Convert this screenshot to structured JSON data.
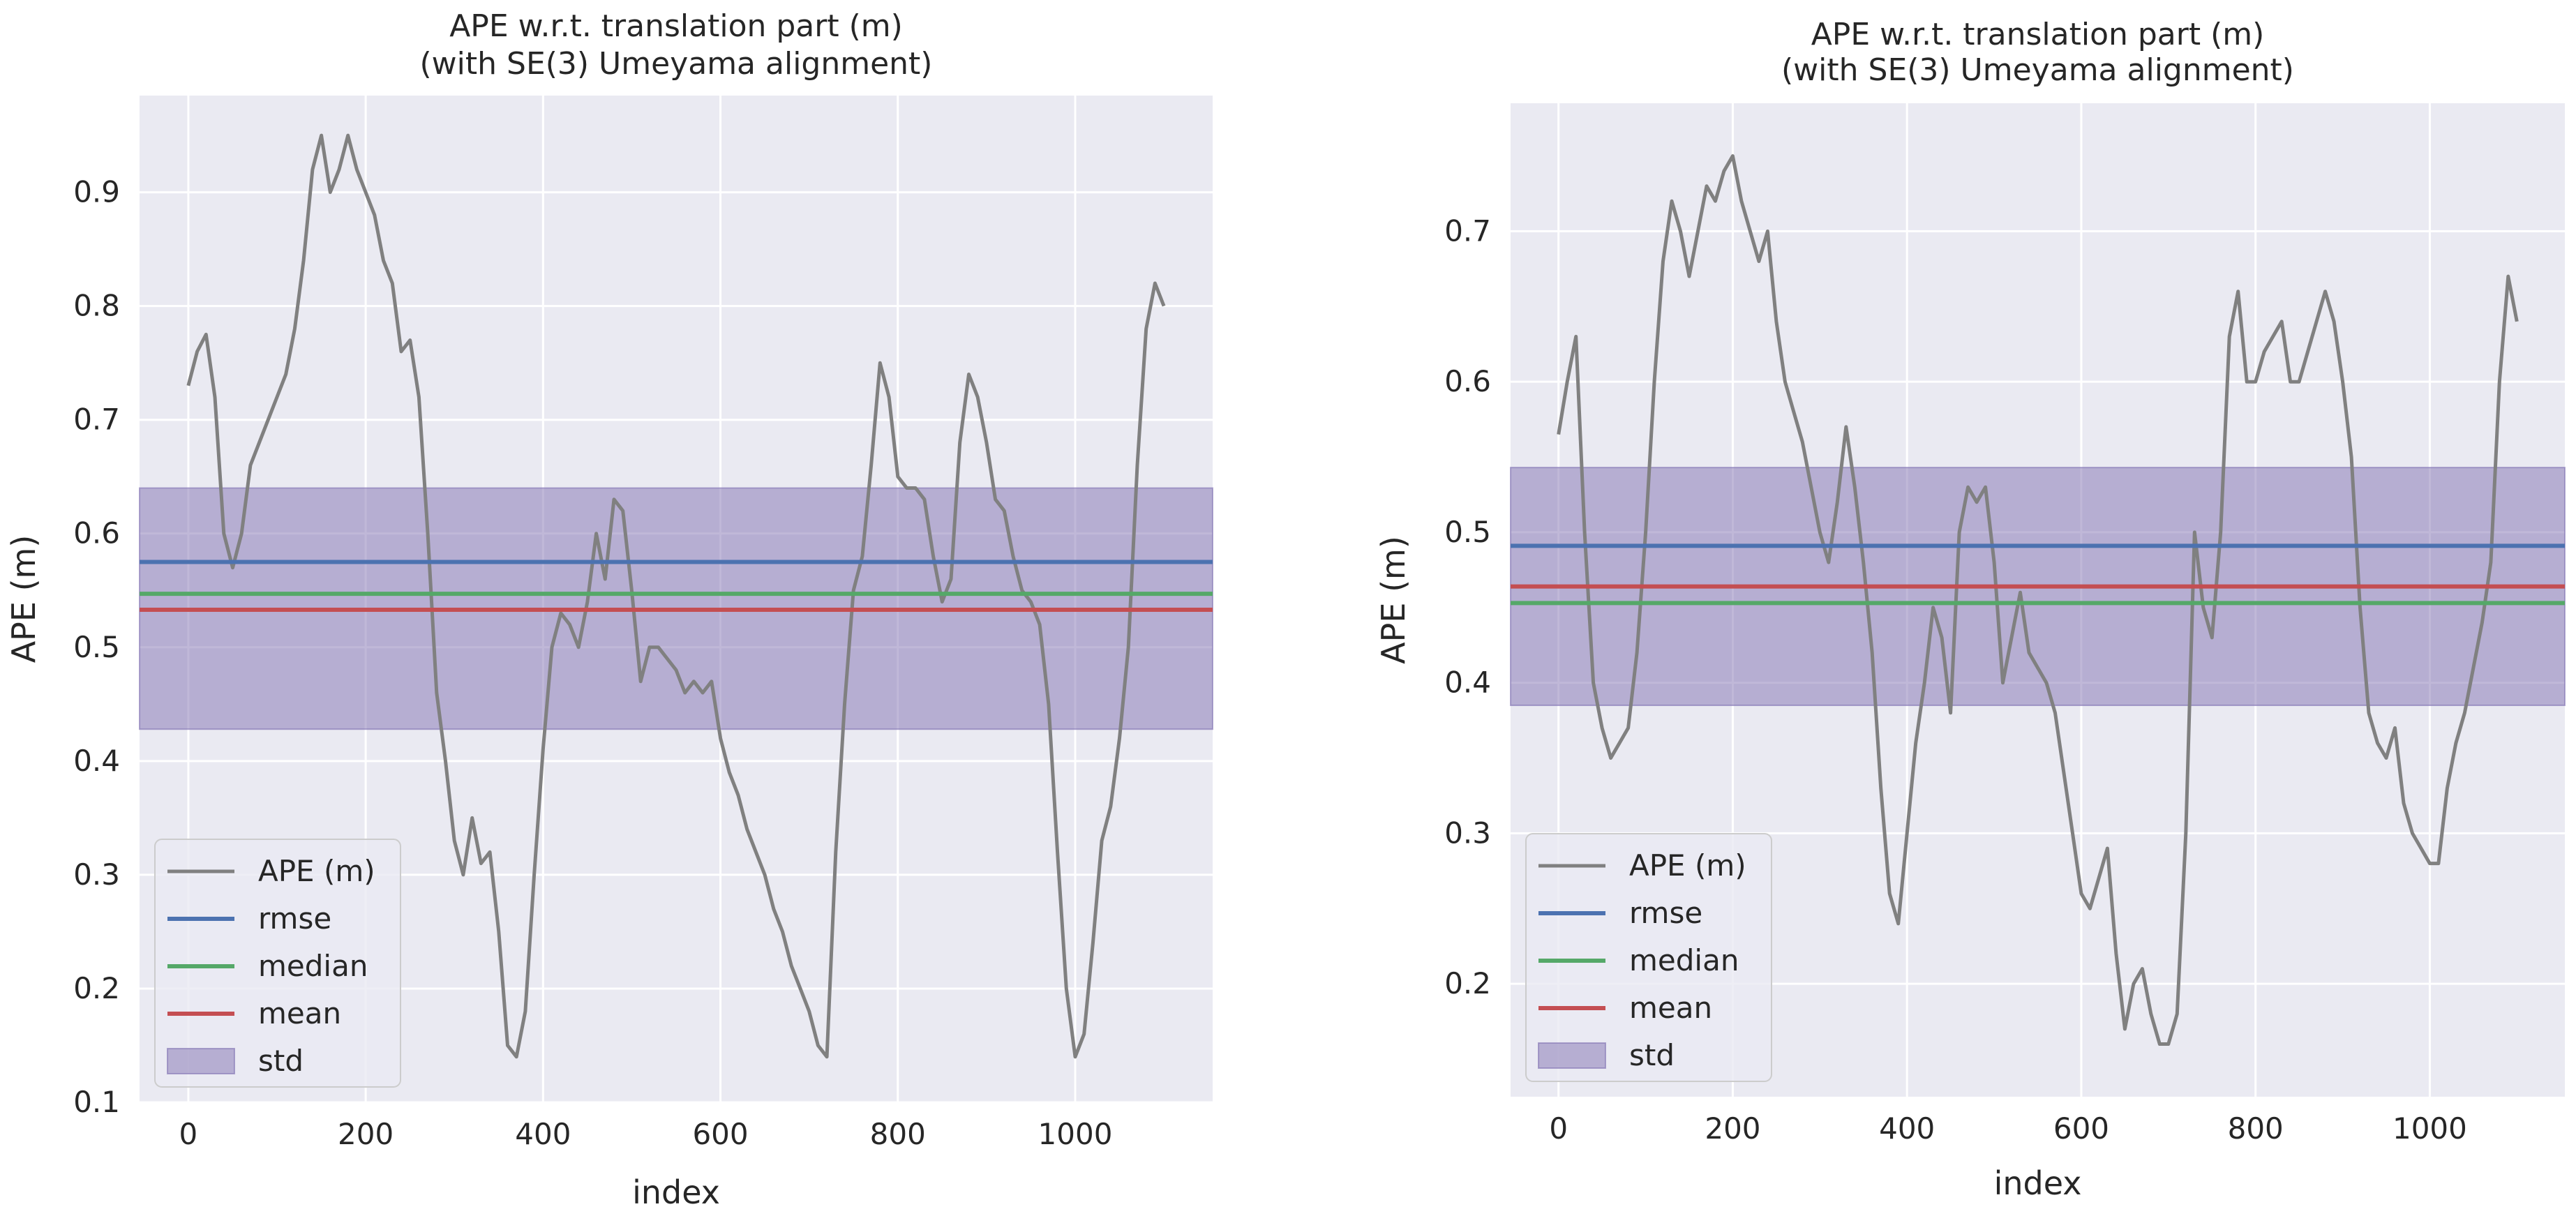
{
  "chart_data": [
    {
      "type": "line",
      "title": "APE w.r.t. translation part (m)",
      "subtitle": "(with SE(3) Umeyama alignment)",
      "xlabel": "index",
      "ylabel": "APE (m)",
      "xlim": [
        -55,
        1155
      ],
      "ylim": [
        0.1,
        0.985
      ],
      "xticks": [
        0,
        200,
        400,
        600,
        800,
        1000
      ],
      "yticks": [
        0.1,
        0.2,
        0.3,
        0.4,
        0.5,
        0.6,
        0.7,
        0.8,
        0.9
      ],
      "grid": true,
      "legend_position": "lower-left",
      "series": [
        {
          "name": "APE (m)",
          "kind": "line",
          "color": "#808080",
          "x": [
            0,
            10,
            20,
            30,
            40,
            50,
            60,
            70,
            80,
            90,
            100,
            110,
            120,
            130,
            140,
            150,
            160,
            170,
            180,
            190,
            200,
            210,
            220,
            230,
            240,
            250,
            260,
            270,
            280,
            290,
            300,
            310,
            320,
            330,
            340,
            350,
            360,
            370,
            380,
            390,
            400,
            410,
            420,
            430,
            440,
            450,
            460,
            470,
            480,
            490,
            500,
            510,
            520,
            530,
            540,
            550,
            560,
            570,
            580,
            590,
            600,
            610,
            620,
            630,
            640,
            650,
            660,
            670,
            680,
            690,
            700,
            710,
            720,
            730,
            740,
            750,
            760,
            770,
            780,
            790,
            800,
            810,
            820,
            830,
            840,
            850,
            860,
            870,
            880,
            890,
            900,
            910,
            920,
            930,
            940,
            950,
            960,
            970,
            980,
            990,
            1000,
            1010,
            1020,
            1030,
            1040,
            1050,
            1060,
            1070,
            1080,
            1090,
            1100
          ],
          "y": [
            0.73,
            0.76,
            0.775,
            0.72,
            0.6,
            0.57,
            0.6,
            0.66,
            0.68,
            0.7,
            0.72,
            0.74,
            0.78,
            0.84,
            0.92,
            0.95,
            0.9,
            0.92,
            0.95,
            0.92,
            0.9,
            0.88,
            0.84,
            0.82,
            0.76,
            0.77,
            0.72,
            0.6,
            0.46,
            0.4,
            0.33,
            0.3,
            0.35,
            0.31,
            0.32,
            0.25,
            0.15,
            0.14,
            0.18,
            0.3,
            0.41,
            0.5,
            0.53,
            0.52,
            0.5,
            0.54,
            0.6,
            0.56,
            0.63,
            0.62,
            0.55,
            0.47,
            0.5,
            0.5,
            0.49,
            0.48,
            0.46,
            0.47,
            0.46,
            0.47,
            0.42,
            0.39,
            0.37,
            0.34,
            0.32,
            0.3,
            0.27,
            0.25,
            0.22,
            0.2,
            0.18,
            0.15,
            0.14,
            0.32,
            0.45,
            0.55,
            0.58,
            0.66,
            0.75,
            0.72,
            0.65,
            0.64,
            0.64,
            0.63,
            0.58,
            0.54,
            0.56,
            0.68,
            0.74,
            0.72,
            0.68,
            0.63,
            0.62,
            0.58,
            0.55,
            0.54,
            0.52,
            0.45,
            0.32,
            0.2,
            0.14,
            0.16,
            0.24,
            0.33,
            0.36,
            0.42,
            0.5,
            0.66,
            0.78,
            0.82,
            0.8
          ]
        },
        {
          "name": "rmse",
          "kind": "hline",
          "color": "#4c72b0",
          "value": 0.575
        },
        {
          "name": "median",
          "kind": "hline",
          "color": "#55a868",
          "value": 0.547
        },
        {
          "name": "mean",
          "kind": "hline",
          "color": "#c44e52",
          "value": 0.533
        },
        {
          "name": "std",
          "kind": "band",
          "color": "#8172b2",
          "lower": 0.428,
          "upper": 0.64
        }
      ]
    },
    {
      "type": "line",
      "title": "APE w.r.t. translation part (m)",
      "subtitle": "(with SE(3) Umeyama alignment)",
      "xlabel": "index",
      "ylabel": "APE (m)",
      "xlim": [
        -55,
        1155
      ],
      "ylim": [
        0.125,
        0.785
      ],
      "xticks": [
        0,
        200,
        400,
        600,
        800,
        1000
      ],
      "yticks": [
        0.2,
        0.3,
        0.4,
        0.5,
        0.6,
        0.7
      ],
      "grid": true,
      "legend_position": "lower-left",
      "series": [
        {
          "name": "APE (m)",
          "kind": "line",
          "color": "#808080",
          "x": [
            0,
            10,
            20,
            30,
            40,
            50,
            60,
            70,
            80,
            90,
            100,
            110,
            120,
            130,
            140,
            150,
            160,
            170,
            180,
            190,
            200,
            210,
            220,
            230,
            240,
            250,
            260,
            270,
            280,
            290,
            300,
            310,
            320,
            330,
            340,
            350,
            360,
            370,
            380,
            390,
            400,
            410,
            420,
            430,
            440,
            450,
            460,
            470,
            480,
            490,
            500,
            510,
            520,
            530,
            540,
            550,
            560,
            570,
            580,
            590,
            600,
            610,
            620,
            630,
            640,
            650,
            660,
            670,
            680,
            690,
            700,
            710,
            720,
            730,
            740,
            750,
            760,
            770,
            780,
            790,
            800,
            810,
            820,
            830,
            840,
            850,
            860,
            870,
            880,
            890,
            900,
            910,
            920,
            930,
            940,
            950,
            960,
            970,
            980,
            990,
            1000,
            1010,
            1020,
            1030,
            1040,
            1050,
            1060,
            1070,
            1080,
            1090,
            1100
          ],
          "y": [
            0.565,
            0.6,
            0.63,
            0.5,
            0.4,
            0.37,
            0.35,
            0.36,
            0.37,
            0.42,
            0.5,
            0.6,
            0.68,
            0.72,
            0.7,
            0.67,
            0.7,
            0.73,
            0.72,
            0.74,
            0.75,
            0.72,
            0.7,
            0.68,
            0.7,
            0.64,
            0.6,
            0.58,
            0.56,
            0.53,
            0.5,
            0.48,
            0.52,
            0.57,
            0.53,
            0.48,
            0.42,
            0.33,
            0.26,
            0.24,
            0.3,
            0.36,
            0.4,
            0.45,
            0.43,
            0.38,
            0.5,
            0.53,
            0.52,
            0.53,
            0.48,
            0.4,
            0.43,
            0.46,
            0.42,
            0.41,
            0.4,
            0.38,
            0.34,
            0.3,
            0.26,
            0.25,
            0.27,
            0.29,
            0.22,
            0.17,
            0.2,
            0.21,
            0.18,
            0.16,
            0.16,
            0.18,
            0.3,
            0.5,
            0.45,
            0.43,
            0.5,
            0.63,
            0.66,
            0.6,
            0.6,
            0.62,
            0.63,
            0.64,
            0.6,
            0.6,
            0.62,
            0.64,
            0.66,
            0.64,
            0.6,
            0.55,
            0.45,
            0.38,
            0.36,
            0.35,
            0.37,
            0.32,
            0.3,
            0.29,
            0.28,
            0.28,
            0.33,
            0.36,
            0.38,
            0.41,
            0.44,
            0.48,
            0.6,
            0.67,
            0.64
          ]
        },
        {
          "name": "rmse",
          "kind": "hline",
          "color": "#4c72b0",
          "value": 0.491
        },
        {
          "name": "median",
          "kind": "hline",
          "color": "#55a868",
          "value": 0.453
        },
        {
          "name": "mean",
          "kind": "hline",
          "color": "#c44e52",
          "value": 0.464
        },
        {
          "name": "std",
          "kind": "band",
          "color": "#8172b2",
          "lower": 0.385,
          "upper": 0.543
        }
      ]
    }
  ]
}
